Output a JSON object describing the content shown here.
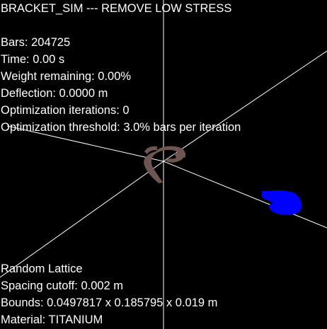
{
  "window": {
    "title": "BRACKET_SIM --- REMOVE LOW STRESS"
  },
  "stats": {
    "bars": "Bars: 204725",
    "time": "Time: 0.00 s",
    "weight_remaining": "Weight remaining: 0.00%",
    "deflection": "Deflection: 0.0000 m",
    "optimization_iterations": "Optimization iterations: 0",
    "optimization_threshold": "Optimization threshold: 3.0% bars per iteration"
  },
  "lattice_info": {
    "type": "Random Lattice",
    "spacing_cutoff": "Spacing cutoff: 0.002 m",
    "bounds": "Bounds: 0.0497817 x 0.185795 x 0.019 m",
    "material": "Material: TITANIUM"
  },
  "colors": {
    "background": "#000000",
    "text": "#ffffff",
    "axis_lines": "#ffffff",
    "bracket_mesh": "#6e5552",
    "load_marker": "#0000ff"
  }
}
